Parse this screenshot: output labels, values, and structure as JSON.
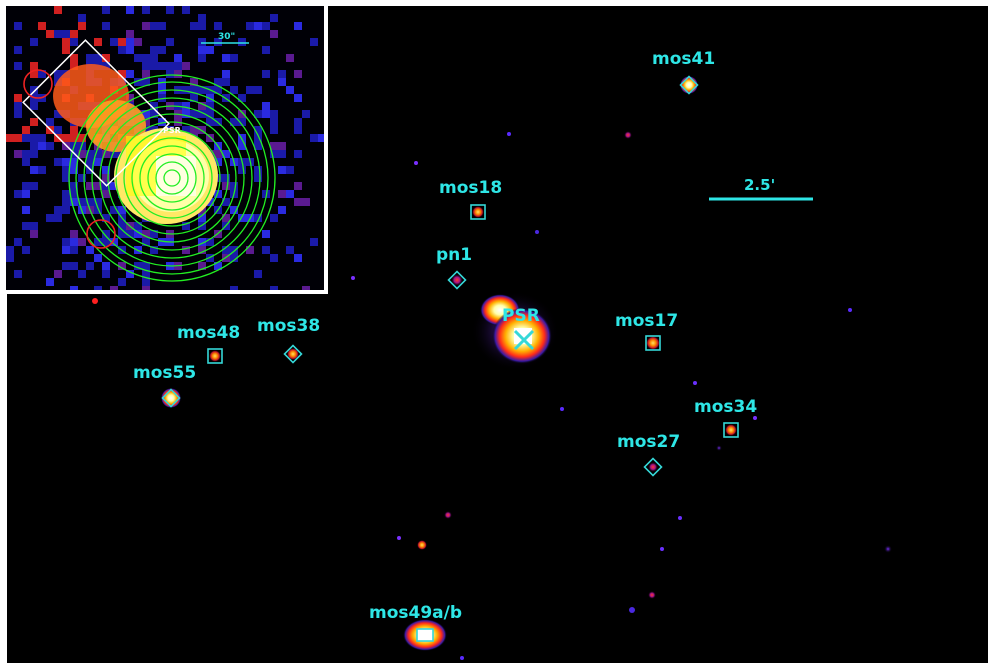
{
  "colors": {
    "label": "#2ee6e6",
    "marker": "#35d8d8",
    "ring": "#22ee22",
    "box": "#ffffff",
    "circle": "#ff2222"
  },
  "scale_bar": {
    "label": "2.5'"
  },
  "inset": {
    "scale_label": "30\"",
    "center_label": "PSR"
  },
  "sources": [
    {
      "id": "mos41",
      "label": "mos41",
      "marker": "diamond"
    },
    {
      "id": "mos18",
      "label": "mos18",
      "marker": "square"
    },
    {
      "id": "pn1",
      "label": "pn1",
      "marker": "diamond"
    },
    {
      "id": "psr",
      "label": "PSR",
      "marker": "cross"
    },
    {
      "id": "mos17",
      "label": "mos17",
      "marker": "square"
    },
    {
      "id": "mos48",
      "label": "mos48",
      "marker": "square"
    },
    {
      "id": "mos38",
      "label": "mos38",
      "marker": "diamond"
    },
    {
      "id": "mos55",
      "label": "mos55",
      "marker": "diamond"
    },
    {
      "id": "mos34",
      "label": "mos34",
      "marker": "square"
    },
    {
      "id": "mos27",
      "label": "mos27",
      "marker": "diamond"
    },
    {
      "id": "mos49ab",
      "label": "mos49a/b",
      "marker": "square"
    }
  ]
}
